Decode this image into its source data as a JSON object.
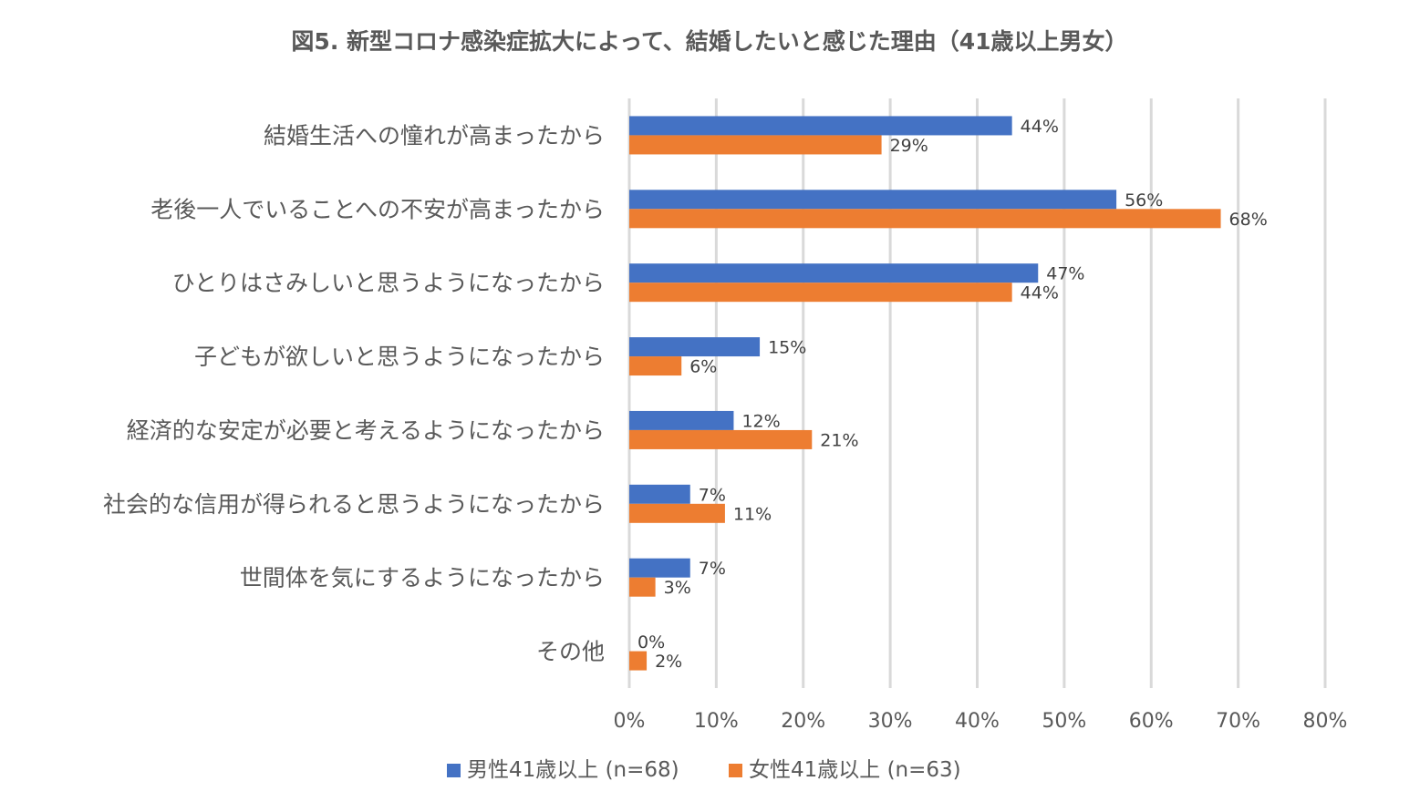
{
  "chart_data": {
    "type": "bar",
    "orientation": "horizontal",
    "title": "図5. 新型コロナ感染症拡大によって、結婚したいと感じた理由（41歳以上男女）",
    "categories": [
      "結婚生活への憧れが高まったから",
      "老後一人でいることへの不安が高まったから",
      "ひとりはさみしいと思うようになったから",
      "子どもが欲しいと思うようになったから",
      "経済的な安定が必要と考えるようになったから",
      "社会的な信用が得られると思うようになったから",
      "世間体を気にするようになったから",
      "その他"
    ],
    "series": [
      {
        "name": "男性41歳以上 (n=68)",
        "color": "#4472c4",
        "values": [
          44,
          56,
          47,
          15,
          12,
          7,
          7,
          0
        ],
        "labels": [
          "44%",
          "56%",
          "47%",
          "15%",
          "12%",
          "7%",
          "7%",
          "0%"
        ]
      },
      {
        "name": "女性41歳以上 (n=63)",
        "color": "#ed7d31",
        "values": [
          29,
          68,
          44,
          6,
          21,
          11,
          3,
          2
        ],
        "labels": [
          "29%",
          "68%",
          "44%",
          "6%",
          "21%",
          "11%",
          "3%",
          "2%"
        ]
      }
    ],
    "xlim": [
      0,
      80
    ],
    "xticks": [
      0,
      10,
      20,
      30,
      40,
      50,
      60,
      70,
      80
    ],
    "xtick_labels": [
      "0%",
      "10%",
      "20%",
      "30%",
      "40%",
      "50%",
      "60%",
      "70%",
      "80%"
    ],
    "xlabel": "",
    "ylabel": "",
    "grid": "vertical",
    "legend_position": "bottom"
  }
}
